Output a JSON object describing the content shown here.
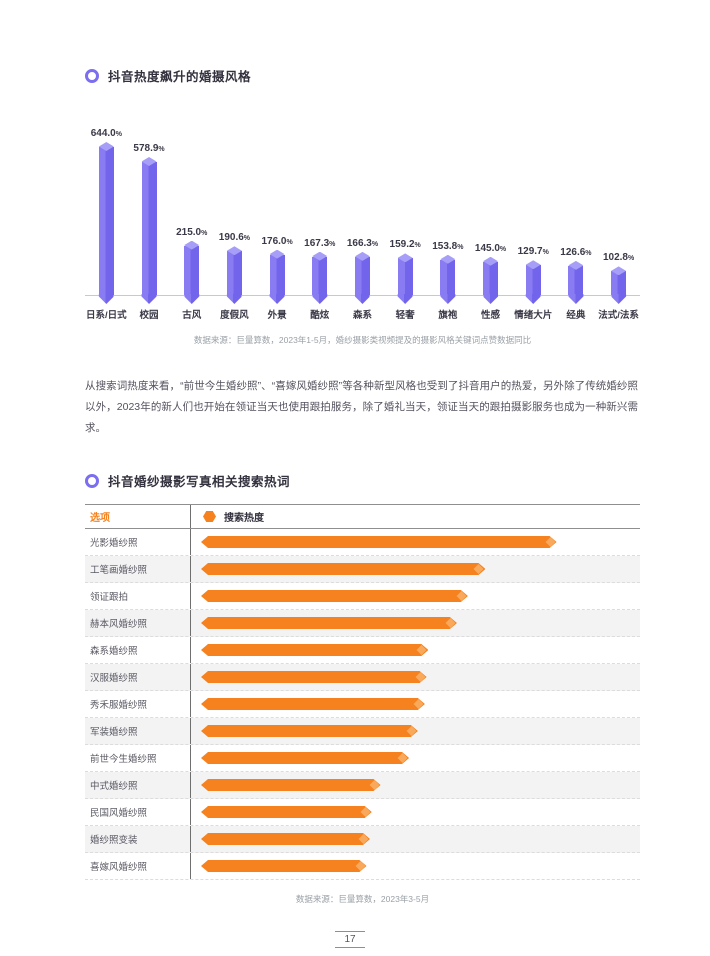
{
  "page": {
    "number": "17"
  },
  "section1": {
    "title": "抖音热度飙升的婚摄风格",
    "source": "数据来源：巨量算数，2023年1-5月，婚纱摄影类视频提及的摄影风格关键词点赞数据同比"
  },
  "paragraph": "从搜索词热度来看，“前世今生婚纱照”、“喜嫁风婚纱照”等各种新型风格也受到了抖音用户的热爱，另外除了传统婚纱照以外，2023年的新人们也开始在领证当天也使用跟拍服务，除了婚礼当天，领证当天的跟拍摄影服务也成为一种新兴需求。",
  "section2": {
    "title": "抖音婚纱摄影写真相关搜索热词",
    "header_label": "选项",
    "legend_label": "搜索热度",
    "source": "数据来源：巨量算数，2023年3-5月"
  },
  "chart_data": [
    {
      "type": "bar",
      "orientation": "vertical",
      "title": "抖音热度飙升的婚摄风格",
      "categories": [
        "日系/日式",
        "校园",
        "古风",
        "度假风",
        "外景",
        "酷炫",
        "森系",
        "轻奢",
        "旗袍",
        "性感",
        "情绪大片",
        "经典",
        "法式/法系"
      ],
      "values": [
        644.0,
        578.9,
        215.0,
        190.6,
        176.0,
        167.3,
        166.3,
        159.2,
        153.8,
        145.0,
        129.7,
        126.6,
        102.8
      ],
      "unit": "%",
      "ylim": [
        0,
        644
      ],
      "grid": false,
      "bar_color": "#7b6ef0",
      "source": "数据来源：巨量算数，2023年1-5月，婚纱摄影类视频提及的摄影风格关键词点赞数据同比"
    },
    {
      "type": "bar",
      "orientation": "horizontal",
      "title": "抖音婚纱摄影写真相关搜索热词",
      "legend": "搜索热度",
      "legend_position": "top",
      "categories": [
        "光影婚纱照",
        "工笔画婚纱照",
        "领证跟拍",
        "赫本风婚纱照",
        "森系婚纱照",
        "汉服婚纱照",
        "秀禾服婚纱照",
        "军装婚纱照",
        "前世今生婚纱照",
        "中式婚纱照",
        "民国风婚纱照",
        "婚纱照变装",
        "喜嫁风婚纱照"
      ],
      "values_relative_pct_of_max": [
        100,
        80,
        75,
        72,
        64,
        63.5,
        63,
        61,
        58.5,
        50.5,
        48,
        47.5,
        46.5
      ],
      "note": "no numeric axis shown; bar lengths estimated relative to longest bar",
      "bar_color": "#f5821f",
      "source": "数据来源：巨量算数，2023年3-5月"
    }
  ]
}
